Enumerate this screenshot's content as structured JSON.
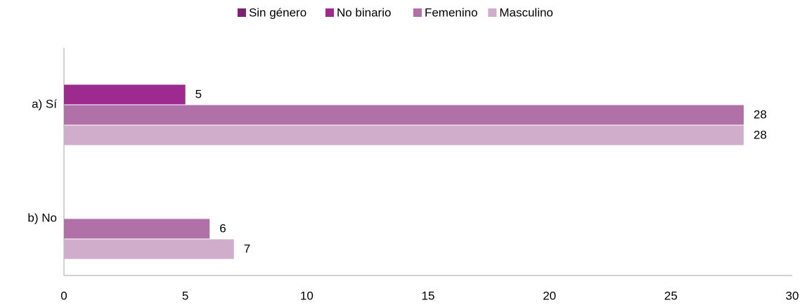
{
  "chart_data": {
    "type": "hbar",
    "categories": [
      "a) Sí",
      "b) No"
    ],
    "series": [
      {
        "name": "Sin género",
        "color": "#7b2270",
        "values": [
          null,
          null
        ]
      },
      {
        "name": "No binario",
        "color": "#9c2a8f",
        "values": [
          5,
          null
        ]
      },
      {
        "name": "Femenino",
        "color": "#b071a8",
        "values": [
          28,
          6
        ]
      },
      {
        "name": "Masculino",
        "color": "#d0aecb",
        "values": [
          28,
          7
        ]
      }
    ],
    "xlim": [
      0,
      30
    ],
    "xticks": [
      0,
      5,
      10,
      15,
      20,
      25,
      30
    ],
    "grid": false,
    "legend": "top"
  }
}
